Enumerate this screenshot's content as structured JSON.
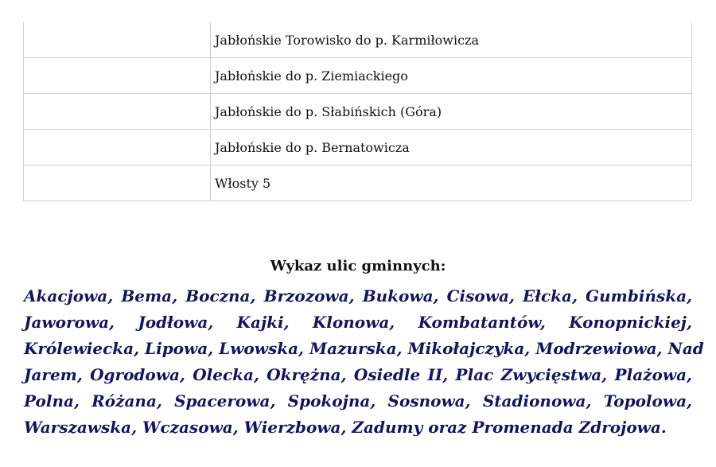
{
  "table": {
    "rows": [
      {
        "col1": "",
        "col2": "Jabłońskie Torowisko do p. Karmiłowicza"
      },
      {
        "col1": "",
        "col2": "Jabłońskie do p. Ziemiackiego"
      },
      {
        "col1": "",
        "col2": "Jabłońskie do p. Słabińskich (Góra)"
      },
      {
        "col1": "",
        "col2": "Jabłońskie do p. Bernatowicza"
      },
      {
        "col1": "",
        "col2": "Włosty 5"
      }
    ]
  },
  "heading": "Wykaz ulic gminnych:",
  "streets": {
    "color": "#12145e",
    "lines": [
      "Akacjowa, Bema, Boczna, Brzozowa, Bukowa, Cisowa, Ełcka, Gumbińska,",
      "Jaworowa, Jodłowa, Kajki, Klonowa, Kombatantów, Konopnickiej,",
      "Królewiecka, Lipowa, Lwowska, Mazurska, Mikołajczyka, Modrzewiowa, Nad",
      "Jarem, Ogrodowa, Olecka, Okrężna, Osiedle II, Plac Zwycięstwa, Plażowa,",
      "Polna, Różana, Spacerowa, Spokojna, Sosnowa, Stadionowa, Topolowa,",
      "Warszawska, Wczasowa, Wierzbowa, Zadumy oraz Promenada Zdrojowa."
    ]
  }
}
